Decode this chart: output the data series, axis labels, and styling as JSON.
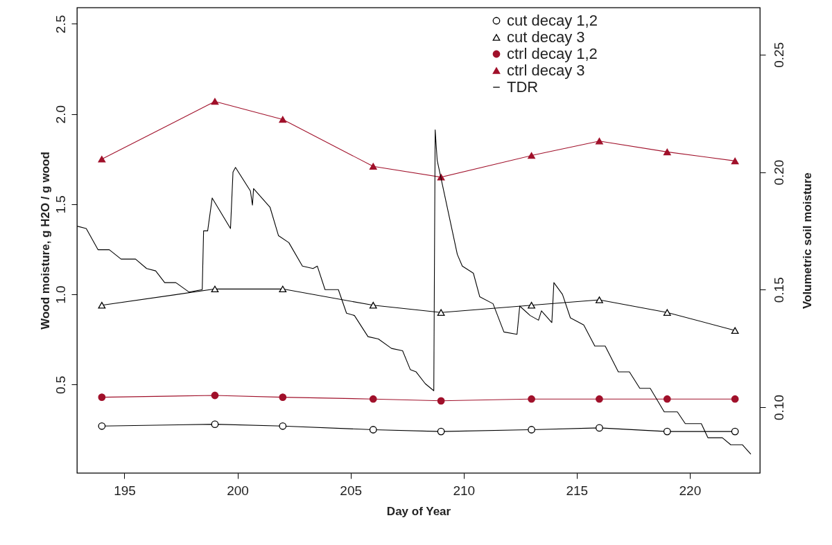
{
  "chart_data": {
    "type": "line",
    "xlabel": "Day of Year",
    "ylabel": "Wood moisture, g H2O / g wood",
    "y2label": "Volumetric soil moisture",
    "xlim": [
      192.9,
      223.1
    ],
    "xticks": [
      195,
      200,
      205,
      210,
      215,
      220
    ],
    "ylim": [
      0.01,
      2.59
    ],
    "yticks": [
      {
        "value": 0.5,
        "label": "0.5"
      },
      {
        "value": 1,
        "label": "1.0"
      },
      {
        "value": 1.5,
        "label": "1.5"
      },
      {
        "value": 2,
        "label": "2.0"
      },
      {
        "value": 2.5,
        "label": "2.5"
      }
    ],
    "y2lim": [
      0.072,
      0.27
    ],
    "y2ticks": [
      {
        "value": 0.1,
        "label": "0.10"
      },
      {
        "value": 0.15,
        "label": "0.15"
      },
      {
        "value": 0.2,
        "label": "0.20"
      },
      {
        "value": 0.25,
        "label": "0.25"
      }
    ],
    "legend": "top right",
    "x": [
      194,
      199,
      202,
      206,
      209,
      213,
      216,
      219,
      222
    ],
    "series": [
      {
        "name": "cut decay 1,2",
        "color": "#000000",
        "marker": "circle",
        "values": [
          0.27,
          0.28,
          0.27,
          0.25,
          0.24,
          0.25,
          0.26,
          0.24,
          0.24
        ]
      },
      {
        "name": "cut decay 3",
        "color": "#000000",
        "marker": "triangle",
        "values": [
          0.94,
          1.03,
          1.03,
          0.94,
          0.9,
          0.94,
          0.97,
          0.9,
          0.8
        ]
      },
      {
        "name": "ctrl decay 1,2",
        "color": "#a0102a",
        "marker": "circle",
        "values": [
          0.43,
          0.44,
          0.43,
          0.42,
          0.41,
          0.42,
          0.42,
          0.42,
          0.42
        ]
      },
      {
        "name": "ctrl decay 3",
        "color": "#a0102a",
        "marker": "triangle",
        "values": [
          1.75,
          2.07,
          1.97,
          1.71,
          1.65,
          1.77,
          1.85,
          1.79,
          1.74
        ]
      },
      {
        "name": "TDR",
        "color": "#000000",
        "marker": "none",
        "axis": "y2",
        "x": [
          192.91,
          193.31,
          193.83,
          194.33,
          194.85,
          195.49,
          195.98,
          196.38,
          196.78,
          197.27,
          197.85,
          198.44,
          198.5,
          198.68,
          198.88,
          199.69,
          199.8,
          199.91,
          200.57,
          200.66,
          200.71,
          201.44,
          201.81,
          202.27,
          202.87,
          203.34,
          203.53,
          203.87,
          204.46,
          204.82,
          205.17,
          205.77,
          206.23,
          206.81,
          207.3,
          207.64,
          207.9,
          208.3,
          208.68,
          208.74,
          208.83,
          209.72,
          209.94,
          210.43,
          210.71,
          211.3,
          211.78,
          212.36,
          212.48,
          212.94,
          213.31,
          213.44,
          213.9,
          213.99,
          214.37,
          214.72,
          215.31,
          215.8,
          216.26,
          216.84,
          217.33,
          217.79,
          218.25,
          218.87,
          219.45,
          219.8,
          220.51,
          220.8,
          221.44,
          221.81,
          222.33,
          222.7
        ],
        "values": [
          0.177,
          0.176,
          0.167,
          0.167,
          0.163,
          0.163,
          0.159,
          0.158,
          0.153,
          0.153,
          0.149,
          0.15,
          0.175,
          0.175,
          0.189,
          0.176,
          0.2,
          0.202,
          0.192,
          0.186,
          0.193,
          0.185,
          0.173,
          0.17,
          0.16,
          0.159,
          0.16,
          0.15,
          0.15,
          0.14,
          0.139,
          0.13,
          0.129,
          0.125,
          0.124,
          0.116,
          0.115,
          0.11,
          0.107,
          0.218,
          0.205,
          0.165,
          0.16,
          0.157,
          0.147,
          0.144,
          0.132,
          0.131,
          0.143,
          0.139,
          0.137,
          0.141,
          0.136,
          0.153,
          0.148,
          0.138,
          0.135,
          0.126,
          0.126,
          0.115,
          0.115,
          0.108,
          0.108,
          0.098,
          0.098,
          0.093,
          0.093,
          0.087,
          0.087,
          0.084,
          0.084,
          0.08
        ]
      }
    ]
  }
}
